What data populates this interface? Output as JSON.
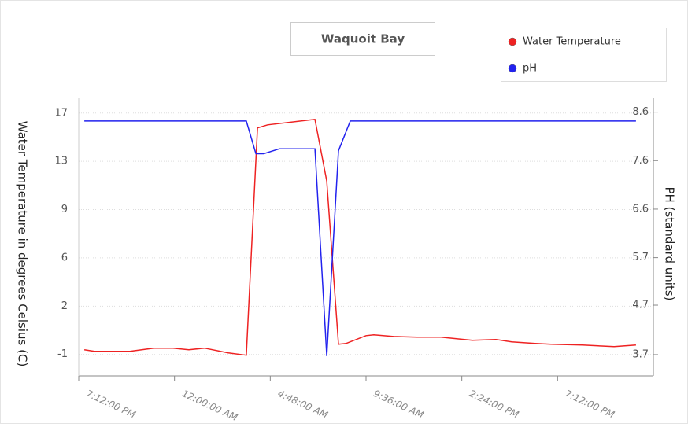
{
  "chart_data": {
    "type": "line",
    "title": "Waquoit Bay",
    "y_label": "Water Temperature in degrees Celsius (C)",
    "y2_label": "PH (standard units)",
    "xlim": [
      0,
      28.8
    ],
    "xticks": [
      {
        "value": 0,
        "label": "7:12:00 PM"
      },
      {
        "value": 4.8,
        "label": "12:00:00 AM"
      },
      {
        "value": 9.6,
        "label": "4:48:00 AM"
      },
      {
        "value": 14.4,
        "label": "9:36:00 AM"
      },
      {
        "value": 19.2,
        "label": "2:24:00 PM"
      },
      {
        "value": 24,
        "label": "7:12:00 PM"
      }
    ],
    "ylim": [
      -3.0,
      17.7
    ],
    "yticks": [
      {
        "value": -1.4,
        "label": "-1"
      },
      {
        "value": 2.2,
        "label": "2"
      },
      {
        "value": 5.8,
        "label": "6"
      },
      {
        "value": 9.4,
        "label": "9"
      },
      {
        "value": 13.0,
        "label": "13"
      },
      {
        "value": 16.6,
        "label": "17"
      }
    ],
    "y2lim": [
      3.27,
      8.88
    ],
    "y2ticks": [
      3.7,
      4.7,
      {
        "value": 5.66,
        "label": "5.7"
      },
      {
        "value": 6.64,
        "label": "6.6"
      },
      {
        "value": 7.62,
        "label": "7.6"
      },
      8.6
    ],
    "grid": true,
    "legend": "upper right",
    "series": [
      {
        "name": "Water Temperature",
        "color": "#ee2222",
        "axis": "y",
        "x": [
          0.28,
          0.79,
          2.56,
          3.75,
          4.73,
          5.52,
          6.31,
          7.5,
          8.4,
          8.96,
          9.47,
          11.84,
          12.43,
          13.02,
          13.41,
          14.4,
          14.79,
          15.78,
          16.96,
          18.15,
          19.73,
          20.91,
          21.7,
          22.88,
          23.67,
          25.25,
          26.04,
          26.83,
          27.93
        ],
        "values": [
          -1.05,
          -1.17,
          -1.17,
          -0.93,
          -0.93,
          -1.05,
          -0.93,
          -1.28,
          -1.46,
          15.49,
          15.72,
          16.13,
          11.52,
          -0.64,
          -0.58,
          0.0,
          0.06,
          -0.06,
          -0.11,
          -0.11,
          -0.35,
          -0.29,
          -0.46,
          -0.58,
          -0.64,
          -0.7,
          -0.76,
          -0.82,
          -0.7
        ]
      },
      {
        "name": "pH",
        "color": "#2222ee",
        "axis": "y2",
        "x": [
          0.28,
          8.4,
          8.88,
          9.27,
          10.06,
          11.84,
          12.43,
          13.02,
          13.61,
          27.93
        ],
        "values": [
          8.42,
          8.42,
          7.76,
          7.76,
          7.86,
          7.86,
          3.67,
          7.82,
          8.42,
          8.42
        ]
      }
    ]
  }
}
